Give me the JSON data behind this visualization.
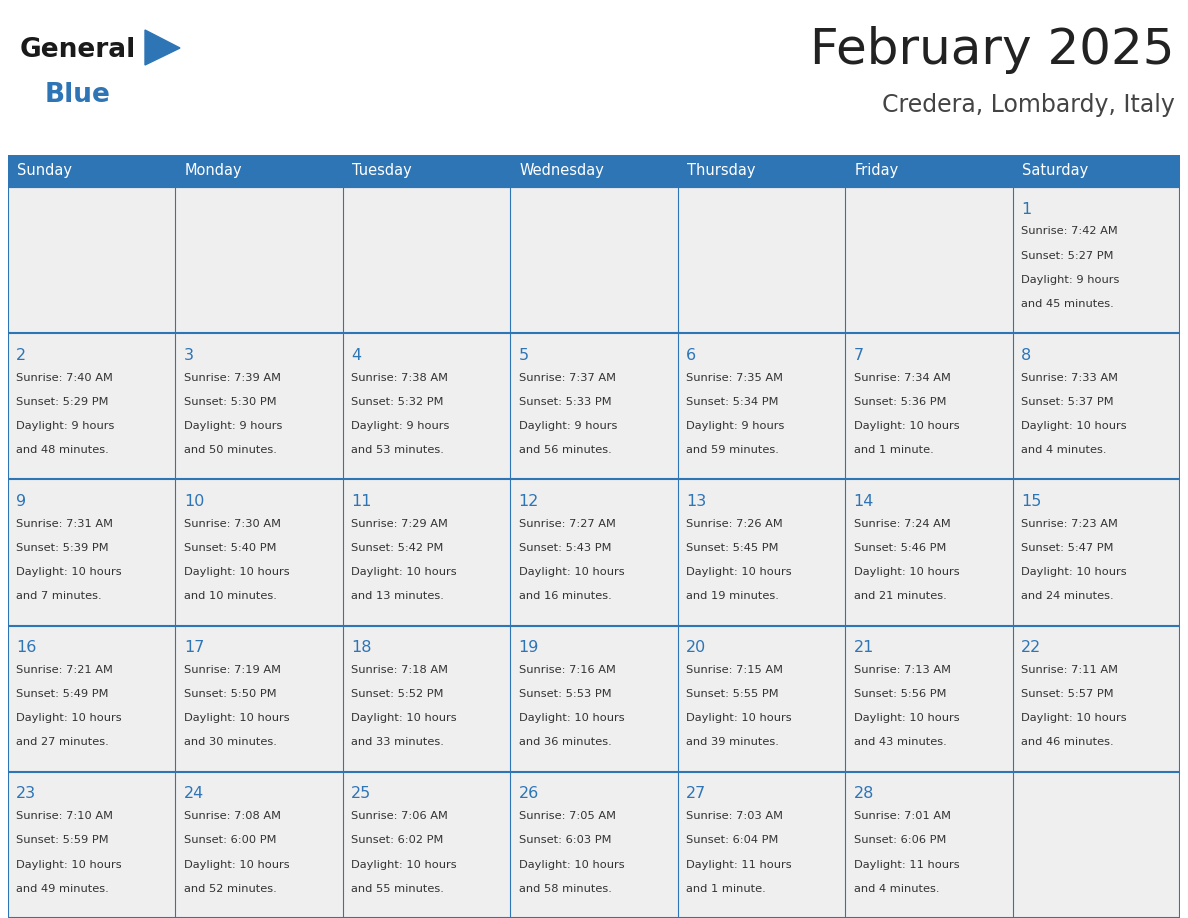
{
  "title": "February 2025",
  "subtitle": "Credera, Lombardy, Italy",
  "header_bg": "#2E75B6",
  "header_text": "#FFFFFF",
  "cell_bg": "#EFEFEF",
  "cell_bg_white": "#FFFFFF",
  "border_color": "#2E75B6",
  "row_separator_color": "#2E75B6",
  "day_headers": [
    "Sunday",
    "Monday",
    "Tuesday",
    "Wednesday",
    "Thursday",
    "Friday",
    "Saturday"
  ],
  "title_color": "#222222",
  "subtitle_color": "#444444",
  "day_num_color": "#2E75B6",
  "cell_text_color": "#333333",
  "weeks": [
    [
      {
        "day": null,
        "info": ""
      },
      {
        "day": null,
        "info": ""
      },
      {
        "day": null,
        "info": ""
      },
      {
        "day": null,
        "info": ""
      },
      {
        "day": null,
        "info": ""
      },
      {
        "day": null,
        "info": ""
      },
      {
        "day": 1,
        "info": "Sunrise: 7:42 AM\nSunset: 5:27 PM\nDaylight: 9 hours\nand 45 minutes."
      }
    ],
    [
      {
        "day": 2,
        "info": "Sunrise: 7:40 AM\nSunset: 5:29 PM\nDaylight: 9 hours\nand 48 minutes."
      },
      {
        "day": 3,
        "info": "Sunrise: 7:39 AM\nSunset: 5:30 PM\nDaylight: 9 hours\nand 50 minutes."
      },
      {
        "day": 4,
        "info": "Sunrise: 7:38 AM\nSunset: 5:32 PM\nDaylight: 9 hours\nand 53 minutes."
      },
      {
        "day": 5,
        "info": "Sunrise: 7:37 AM\nSunset: 5:33 PM\nDaylight: 9 hours\nand 56 minutes."
      },
      {
        "day": 6,
        "info": "Sunrise: 7:35 AM\nSunset: 5:34 PM\nDaylight: 9 hours\nand 59 minutes."
      },
      {
        "day": 7,
        "info": "Sunrise: 7:34 AM\nSunset: 5:36 PM\nDaylight: 10 hours\nand 1 minute."
      },
      {
        "day": 8,
        "info": "Sunrise: 7:33 AM\nSunset: 5:37 PM\nDaylight: 10 hours\nand 4 minutes."
      }
    ],
    [
      {
        "day": 9,
        "info": "Sunrise: 7:31 AM\nSunset: 5:39 PM\nDaylight: 10 hours\nand 7 minutes."
      },
      {
        "day": 10,
        "info": "Sunrise: 7:30 AM\nSunset: 5:40 PM\nDaylight: 10 hours\nand 10 minutes."
      },
      {
        "day": 11,
        "info": "Sunrise: 7:29 AM\nSunset: 5:42 PM\nDaylight: 10 hours\nand 13 minutes."
      },
      {
        "day": 12,
        "info": "Sunrise: 7:27 AM\nSunset: 5:43 PM\nDaylight: 10 hours\nand 16 minutes."
      },
      {
        "day": 13,
        "info": "Sunrise: 7:26 AM\nSunset: 5:45 PM\nDaylight: 10 hours\nand 19 minutes."
      },
      {
        "day": 14,
        "info": "Sunrise: 7:24 AM\nSunset: 5:46 PM\nDaylight: 10 hours\nand 21 minutes."
      },
      {
        "day": 15,
        "info": "Sunrise: 7:23 AM\nSunset: 5:47 PM\nDaylight: 10 hours\nand 24 minutes."
      }
    ],
    [
      {
        "day": 16,
        "info": "Sunrise: 7:21 AM\nSunset: 5:49 PM\nDaylight: 10 hours\nand 27 minutes."
      },
      {
        "day": 17,
        "info": "Sunrise: 7:19 AM\nSunset: 5:50 PM\nDaylight: 10 hours\nand 30 minutes."
      },
      {
        "day": 18,
        "info": "Sunrise: 7:18 AM\nSunset: 5:52 PM\nDaylight: 10 hours\nand 33 minutes."
      },
      {
        "day": 19,
        "info": "Sunrise: 7:16 AM\nSunset: 5:53 PM\nDaylight: 10 hours\nand 36 minutes."
      },
      {
        "day": 20,
        "info": "Sunrise: 7:15 AM\nSunset: 5:55 PM\nDaylight: 10 hours\nand 39 minutes."
      },
      {
        "day": 21,
        "info": "Sunrise: 7:13 AM\nSunset: 5:56 PM\nDaylight: 10 hours\nand 43 minutes."
      },
      {
        "day": 22,
        "info": "Sunrise: 7:11 AM\nSunset: 5:57 PM\nDaylight: 10 hours\nand 46 minutes."
      }
    ],
    [
      {
        "day": 23,
        "info": "Sunrise: 7:10 AM\nSunset: 5:59 PM\nDaylight: 10 hours\nand 49 minutes."
      },
      {
        "day": 24,
        "info": "Sunrise: 7:08 AM\nSunset: 6:00 PM\nDaylight: 10 hours\nand 52 minutes."
      },
      {
        "day": 25,
        "info": "Sunrise: 7:06 AM\nSunset: 6:02 PM\nDaylight: 10 hours\nand 55 minutes."
      },
      {
        "day": 26,
        "info": "Sunrise: 7:05 AM\nSunset: 6:03 PM\nDaylight: 10 hours\nand 58 minutes."
      },
      {
        "day": 27,
        "info": "Sunrise: 7:03 AM\nSunset: 6:04 PM\nDaylight: 11 hours\nand 1 minute."
      },
      {
        "day": 28,
        "info": "Sunrise: 7:01 AM\nSunset: 6:06 PM\nDaylight: 11 hours\nand 4 minutes."
      },
      {
        "day": null,
        "info": ""
      }
    ]
  ]
}
